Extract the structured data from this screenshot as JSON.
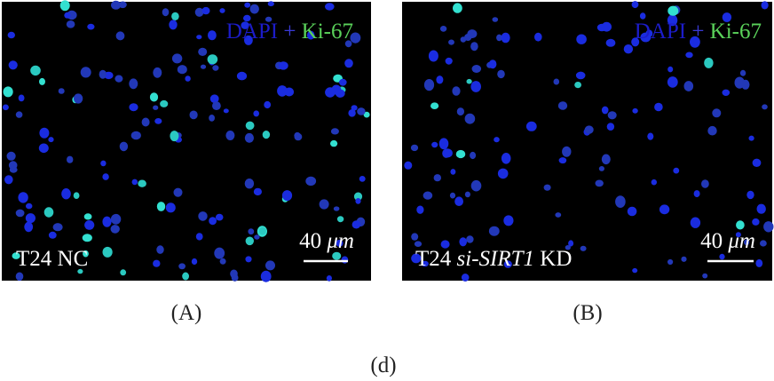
{
  "panels": [
    {
      "label": "(A)",
      "stain": [
        "DAPI",
        "+",
        "Ki-67"
      ],
      "caption": [
        "T24 NC"
      ],
      "scale_bar": {
        "value": "40",
        "unit": "μm"
      }
    },
    {
      "label": "(B)",
      "stain": [
        "DAPI",
        "+",
        "Ki-67"
      ],
      "caption": [
        "T24",
        "si-SIRT1",
        "KD"
      ],
      "scale_bar": {
        "value": "40",
        "unit": "μm"
      }
    }
  ],
  "figure_label": "(d)"
}
